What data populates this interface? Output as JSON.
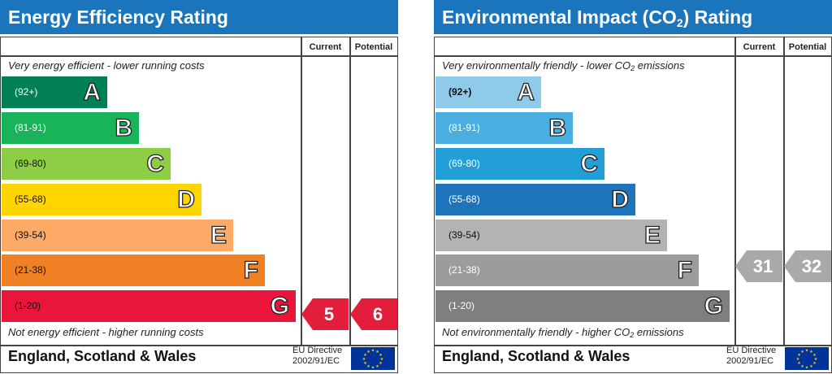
{
  "energy": {
    "title": "Energy Efficiency Rating",
    "col_current": "Current",
    "col_potential": "Potential",
    "top_caption": "Very energy efficient - lower running costs",
    "bottom_caption": "Not energy efficient - higher running costs",
    "bands": [
      {
        "range": "(92+)",
        "letter": "A",
        "color": "#008054"
      },
      {
        "range": "(81-91)",
        "letter": "B",
        "color": "#19b459"
      },
      {
        "range": "(69-80)",
        "letter": "C",
        "color": "#8dce46"
      },
      {
        "range": "(55-68)",
        "letter": "D",
        "color": "#ffd500"
      },
      {
        "range": "(39-54)",
        "letter": "E",
        "color": "#fcaa65"
      },
      {
        "range": "(21-38)",
        "letter": "F",
        "color": "#ef8023"
      },
      {
        "range": "(1-20)",
        "letter": "G",
        "color": "#e9153b"
      }
    ],
    "current": "5",
    "potential": "6",
    "footer": "England, Scotland & Wales",
    "directive_line1": "EU Directive",
    "directive_line2": "2002/91/EC"
  },
  "environment": {
    "title_pre": "Environmental Impact (CO",
    "title_sub": "2",
    "title_post": ") Rating",
    "col_current": "Current",
    "col_potential": "Potential",
    "top_caption_pre": "Very environmentally friendly - lower CO",
    "top_caption_sub": "2",
    "top_caption_post": " emissions",
    "bottom_caption_pre": "Not environmentally friendly - higher CO",
    "bottom_caption_sub": "2",
    "bottom_caption_post": " emissions",
    "bands": [
      {
        "range": "(92+)",
        "letter": "A",
        "color": "#8fcaea"
      },
      {
        "range": "(81-91)",
        "letter": "B",
        "color": "#4aaee0"
      },
      {
        "range": "(69-80)",
        "letter": "C",
        "color": "#239fd8"
      },
      {
        "range": "(55-68)",
        "letter": "D",
        "color": "#1d74bb"
      },
      {
        "range": "(39-54)",
        "letter": "E",
        "color": "#b3b3b3"
      },
      {
        "range": "(21-38)",
        "letter": "F",
        "color": "#9c9c9c"
      },
      {
        "range": "(1-20)",
        "letter": "G",
        "color": "#7f7f7f"
      }
    ],
    "current": "31",
    "potential": "32",
    "footer": "England, Scotland & Wales",
    "directive_line1": "EU Directive",
    "directive_line2": "2002/91/EC"
  },
  "icons": {
    "eu_flag": "eu-flag-icon"
  }
}
